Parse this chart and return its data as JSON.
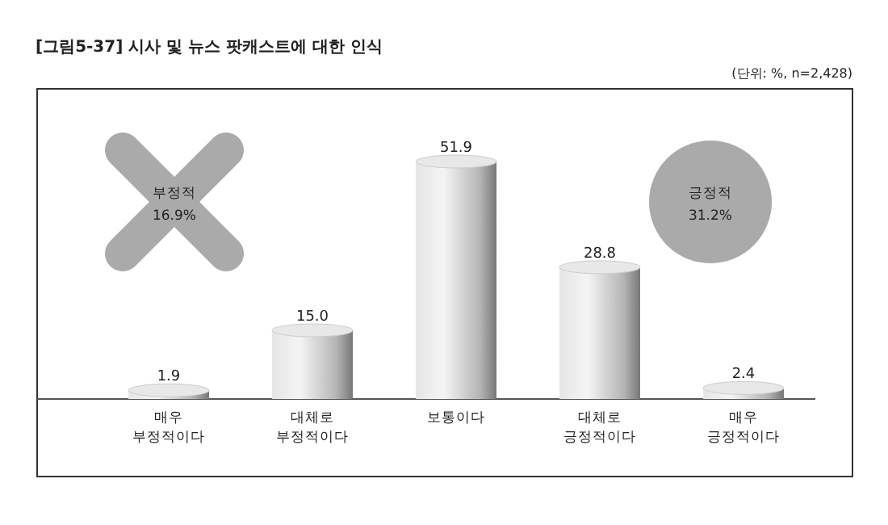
{
  "chart_data": {
    "type": "bar",
    "title": "[그림5-37] 시사 및 뉴스 팟캐스트에 대한 인식",
    "subtitle": "(단위: %, n=2,428)",
    "categories": [
      "매우\n부정적이다",
      "대체로\n부정적이다",
      "보통이다",
      "대체로\n긍정적이다",
      "매우\n긍정적이다"
    ],
    "values": [
      1.9,
      15.0,
      51.9,
      28.8,
      2.4
    ],
    "color": "#b4b4b4",
    "value_labels": [
      "1.9",
      "15.0",
      "51.9",
      "28.8",
      "2.4"
    ],
    "annotations": [
      "부정적\n16.9%",
      "긍정적\n31.2%"
    ]
  }
}
